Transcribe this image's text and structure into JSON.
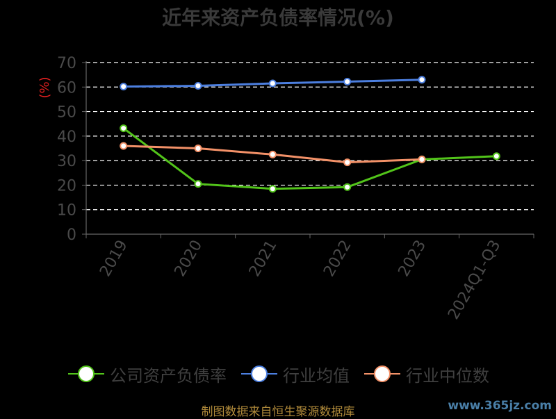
{
  "title": "近年来资产负债率情况(%)",
  "chart_data": {
    "type": "line",
    "title": "近年来资产负债率情况(%)",
    "ylabel": "(%)",
    "xlabel": "",
    "categories": [
      "2019",
      "2020",
      "2021",
      "2022",
      "2023",
      "2024Q1-Q3"
    ],
    "ylim": [
      0,
      70
    ],
    "yticks": [
      0,
      10,
      20,
      30,
      40,
      50,
      60,
      70
    ],
    "grid": true,
    "legend_position": "bottom",
    "series": [
      {
        "name": "公司资产负债率",
        "color": "#52c41a",
        "values": [
          43.2,
          20.5,
          18.5,
          19.2,
          30.5,
          31.8
        ]
      },
      {
        "name": "行业均值",
        "color": "#4c7fe0",
        "values": [
          60.2,
          60.5,
          61.5,
          62.2,
          63.0,
          null
        ]
      },
      {
        "name": "行业中位数",
        "color": "#f39168",
        "values": [
          36.0,
          35.0,
          32.5,
          29.3,
          30.5,
          null
        ]
      }
    ]
  },
  "source_text": "制图数据来自恒生聚源数据库",
  "watermark": "www.365jz.com",
  "colors": {
    "background": "#000000",
    "axis": "#666666",
    "grid": "#ffffff",
    "ylabel": "#e02020"
  }
}
